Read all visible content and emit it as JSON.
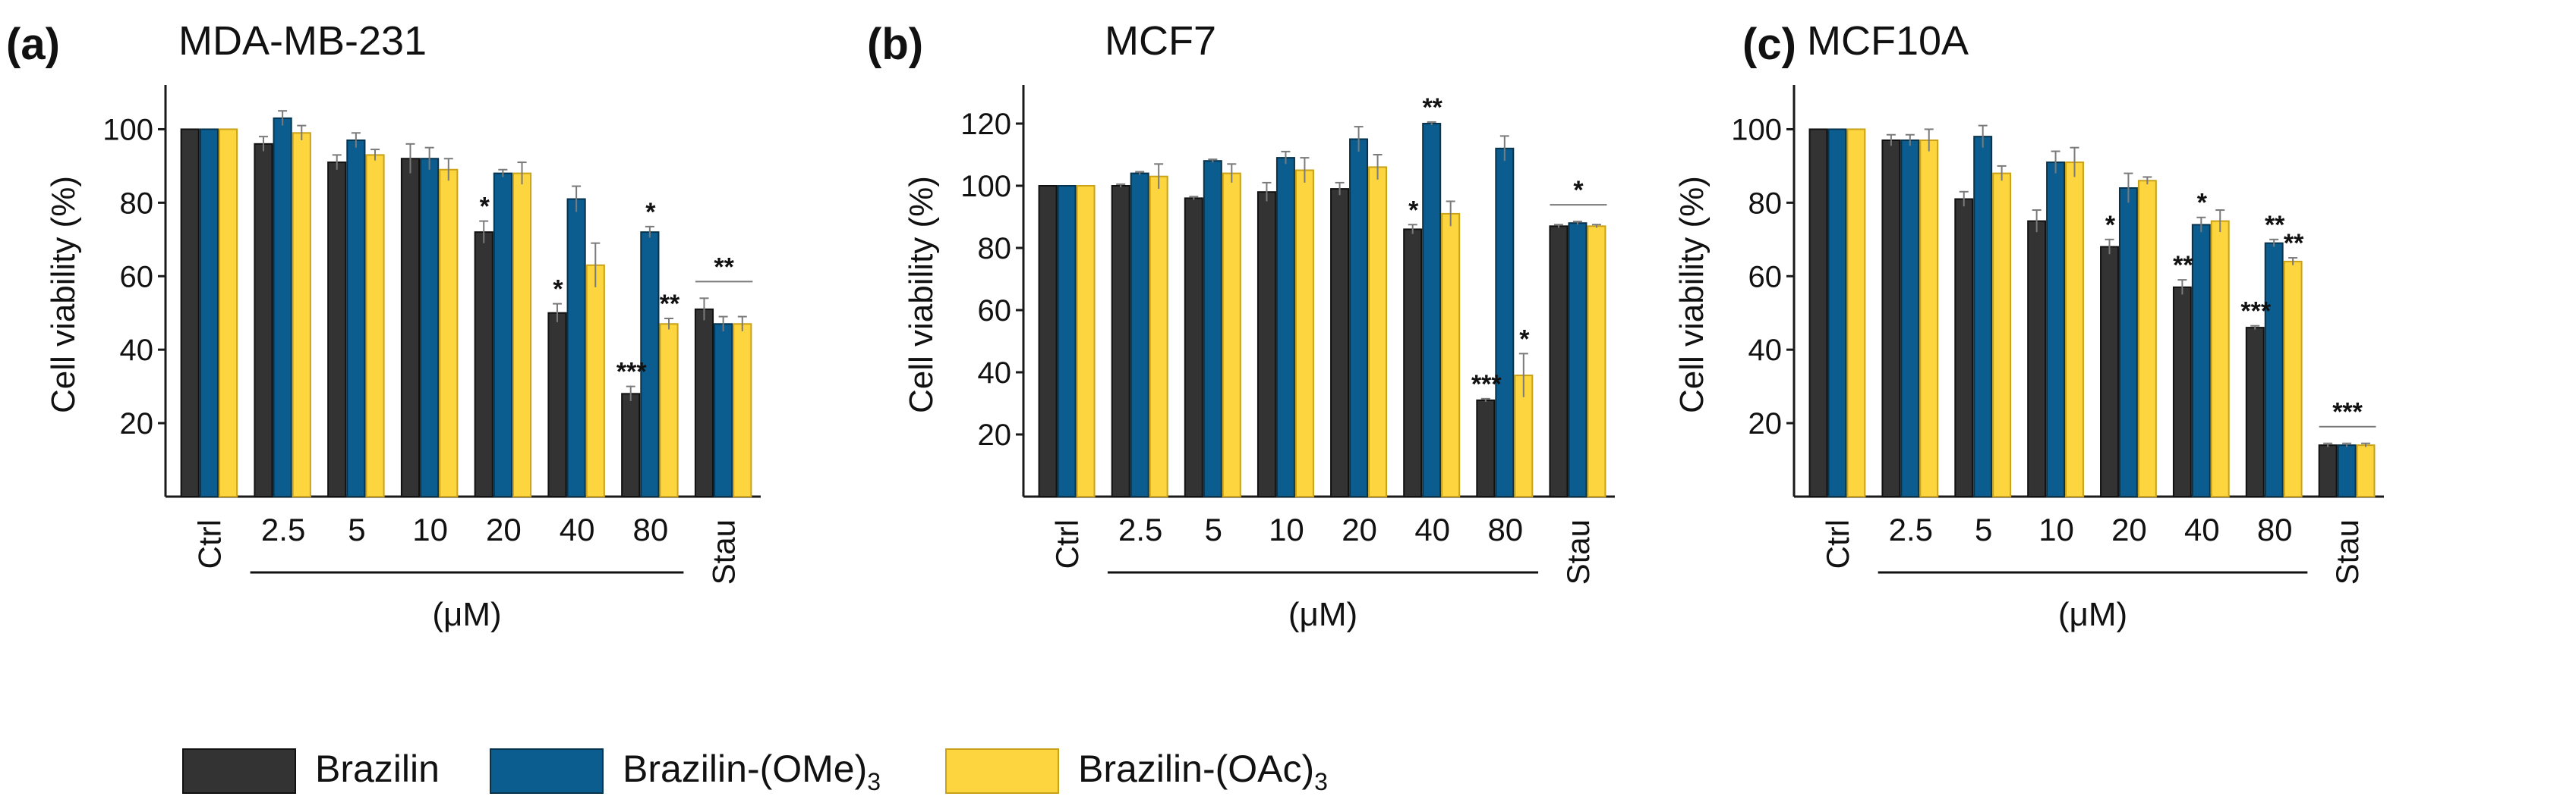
{
  "colors": {
    "brazilin": "#333333",
    "ome": "#0c5d8f",
    "oac": "#fdd53f",
    "axis": "#1a1a1a",
    "errorbar": "#7a7a7a"
  },
  "legend": {
    "items": [
      {
        "label": "Brazilin",
        "sub": "",
        "color": "#333333"
      },
      {
        "label": "Brazilin-(OMe)",
        "sub": "3",
        "color": "#0c5d8f"
      },
      {
        "label": "Brazilin-(OAc)",
        "sub": "3",
        "color": "#fdd53f"
      }
    ]
  },
  "chart_data": [
    {
      "type": "bar",
      "panel_label": "(a)",
      "title": "MDA-MB-231",
      "ylabel": "Cell viability (%)",
      "xgroup_label": "(μM)",
      "categories": [
        "Ctrl",
        "2.5",
        "5",
        "10",
        "20",
        "40",
        "80",
        "Stau"
      ],
      "rotated_categories": [
        "Ctrl",
        "Stau"
      ],
      "ylim": [
        0,
        110
      ],
      "yticks": [
        20,
        40,
        60,
        80,
        100
      ],
      "series": [
        {
          "name": "Brazilin",
          "values": [
            100,
            96,
            91,
            92,
            72,
            50,
            28,
            51
          ],
          "errors": [
            0,
            2,
            2,
            4,
            3,
            2.5,
            2,
            3
          ]
        },
        {
          "name": "Brazilin-(OMe)3",
          "values": [
            100,
            103,
            97,
            92,
            88,
            81,
            72,
            47
          ],
          "errors": [
            0,
            2,
            2,
            3,
            1,
            3.5,
            1.5,
            2
          ]
        },
        {
          "name": "Brazilin-(OAc)3",
          "values": [
            100,
            99,
            93,
            89,
            88,
            63,
            47,
            47
          ],
          "errors": [
            0,
            2,
            1.5,
            3,
            3,
            6,
            1.5,
            2
          ]
        }
      ],
      "significance": [
        {
          "category": "20",
          "series": 0,
          "text": "*"
        },
        {
          "category": "40",
          "series": 0,
          "text": "*"
        },
        {
          "category": "80",
          "series": 0,
          "text": "***"
        },
        {
          "category": "80",
          "series": 1,
          "text": "*"
        },
        {
          "category": "80",
          "series": 2,
          "text": "**"
        }
      ],
      "stau_bracket": "**"
    },
    {
      "type": "bar",
      "panel_label": "(b)",
      "title": "MCF7",
      "ylabel": "Cell viability (%)",
      "xgroup_label": "(μM)",
      "categories": [
        "Ctrl",
        "2.5",
        "5",
        "10",
        "20",
        "40",
        "80",
        "Stau"
      ],
      "rotated_categories": [
        "Ctrl",
        "Stau"
      ],
      "ylim": [
        0,
        130
      ],
      "yticks": [
        20,
        40,
        60,
        80,
        100,
        120
      ],
      "series": [
        {
          "name": "Brazilin",
          "values": [
            100,
            100,
            96,
            98,
            99,
            86,
            31,
            87
          ],
          "errors": [
            0,
            0.5,
            0.5,
            3,
            2,
            1.5,
            0.5,
            0.5
          ]
        },
        {
          "name": "Brazilin-(OMe)3",
          "values": [
            100,
            104,
            108,
            109,
            115,
            120,
            112,
            88
          ],
          "errors": [
            0,
            0.5,
            0.5,
            2,
            4,
            0.5,
            4,
            0.5
          ]
        },
        {
          "name": "Brazilin-(OAc)3",
          "values": [
            100,
            103,
            104,
            105,
            106,
            91,
            39,
            87
          ],
          "errors": [
            0,
            4,
            3,
            4,
            4,
            4,
            7,
            0.5
          ]
        }
      ],
      "significance": [
        {
          "category": "40",
          "series": 0,
          "text": "*"
        },
        {
          "category": "40",
          "series": 1,
          "text": "**"
        },
        {
          "category": "80",
          "series": 0,
          "text": "***"
        },
        {
          "category": "80",
          "series": 2,
          "text": "*"
        }
      ],
      "stau_bracket": "*"
    },
    {
      "type": "bar",
      "panel_label": "(c)",
      "title": "MCF10A",
      "ylabel": "Cell viability (%)",
      "xgroup_label": "(μM)",
      "categories": [
        "Ctrl",
        "2.5",
        "5",
        "10",
        "20",
        "40",
        "80",
        "Stau"
      ],
      "rotated_categories": [
        "Ctrl",
        "Stau"
      ],
      "ylim": [
        0,
        110
      ],
      "yticks": [
        20,
        40,
        60,
        80,
        100
      ],
      "series": [
        {
          "name": "Brazilin",
          "values": [
            100,
            97,
            81,
            75,
            68,
            57,
            46,
            14
          ],
          "errors": [
            0,
            1.5,
            2,
            3,
            2,
            2,
            0.5,
            0.5
          ]
        },
        {
          "name": "Brazilin-(OMe)3",
          "values": [
            100,
            97,
            98,
            91,
            84,
            74,
            69,
            14
          ],
          "errors": [
            0,
            1.5,
            3,
            3,
            4,
            2,
            1,
            0.5
          ]
        },
        {
          "name": "Brazilin-(OAc)3",
          "values": [
            100,
            97,
            88,
            91,
            86,
            75,
            64,
            14
          ],
          "errors": [
            0,
            3,
            2,
            4,
            1,
            3,
            1,
            0.5
          ]
        }
      ],
      "significance": [
        {
          "category": "20",
          "series": 0,
          "text": "*"
        },
        {
          "category": "40",
          "series": 0,
          "text": "**"
        },
        {
          "category": "40",
          "series": 1,
          "text": "*"
        },
        {
          "category": "80",
          "series": 0,
          "text": "***"
        },
        {
          "category": "80",
          "series": 1,
          "text": "**"
        },
        {
          "category": "80",
          "series": 2,
          "text": "**"
        }
      ],
      "stau_bracket": "***"
    }
  ]
}
